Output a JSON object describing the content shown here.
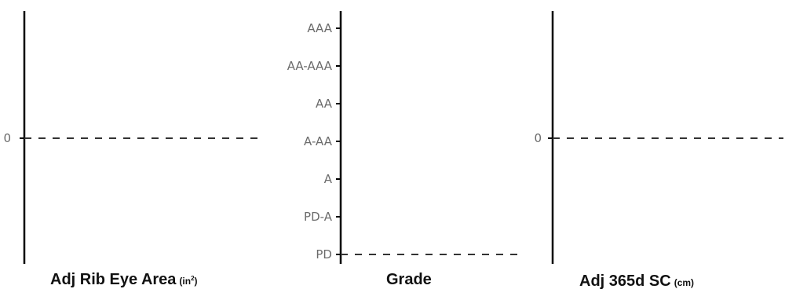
{
  "chart_data": [
    {
      "type": "line",
      "xlabel": "Adj Rib Eye Area",
      "unit_label": "(in",
      "unit_sup": "2",
      "unit_close": ")",
      "y_ticks": [
        "0"
      ],
      "reference_line": {
        "y": "0",
        "style": "dashed"
      },
      "grid": false
    },
    {
      "type": "line",
      "xlabel": "Grade",
      "unit_label": "",
      "categories": [
        "AAA",
        "AA-AAA",
        "AA",
        "A-AA",
        "A",
        "PD-A",
        "PD"
      ],
      "reference_line": {
        "y": "PD",
        "style": "dashed"
      },
      "grid": false
    },
    {
      "type": "line",
      "xlabel": "Adj 365d SC",
      "unit_label": "(cm)",
      "y_ticks": [
        "0"
      ],
      "reference_line": {
        "y": "0",
        "style": "dashed"
      },
      "grid": false
    }
  ]
}
